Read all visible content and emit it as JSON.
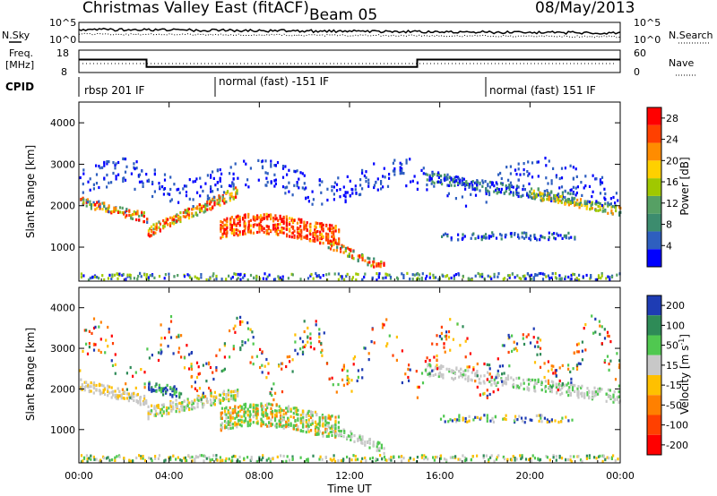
{
  "header": {
    "title": "Christmas Valley East (fitACF)",
    "beam": "Beam 05",
    "date": "08/May/2013"
  },
  "noise_panel": {
    "left_label": "N.Sky",
    "right_label": "N.Search",
    "left_ticks": [
      "10^5",
      "10^0"
    ],
    "right_ticks": [
      "10^5",
      "10^0"
    ]
  },
  "freq_panel": {
    "left_label_line1": "Freq.",
    "left_label_line2": "[MHz]",
    "right_label": "Nave",
    "left_ticks": [
      "18",
      "8"
    ],
    "right_ticks": [
      "60",
      "0"
    ]
  },
  "cpid": {
    "label": "CPID",
    "segments": [
      {
        "text": "rbsp 201 IF",
        "start_hour": 0
      },
      {
        "text": "normal (fast) -151 IF",
        "start_hour": 6
      },
      {
        "text": "normal (fast) 151 IF",
        "start_hour": 18
      }
    ]
  },
  "colors": {
    "power": [
      "#0000ff",
      "#2e5fbf",
      "#3c8c6e",
      "#56a064",
      "#a0c800",
      "#ffd000",
      "#ff8c00",
      "#ff4000",
      "#ff0000"
    ],
    "velocity": [
      "#1e3cb4",
      "#2e8b57",
      "#50c850",
      "#c8c8c8",
      "#ffc000",
      "#ff8000",
      "#ff4000",
      "#ff0000"
    ]
  },
  "chart_data": [
    {
      "type": "heatmap",
      "name": "power",
      "ylabel": "Slant Range [km]",
      "x_range_hours": [
        0,
        24
      ],
      "ylim_km": [
        180,
        4500
      ],
      "yticks": [
        1000,
        2000,
        3000,
        4000
      ],
      "colorbar": {
        "label": "Power [dB]",
        "ticks": [
          4,
          8,
          12,
          16,
          20,
          24,
          28
        ],
        "range": [
          0,
          30
        ]
      }
    },
    {
      "type": "heatmap",
      "name": "velocity",
      "ylabel": "Slant Range [km]",
      "xlabel": "Time UT",
      "x_range_hours": [
        0,
        24
      ],
      "ylim_km": [
        180,
        4500
      ],
      "yticks": [
        1000,
        2000,
        3000,
        4000
      ],
      "xticks": [
        "00:00",
        "04:00",
        "08:00",
        "12:00",
        "16:00",
        "20:00",
        "00:00"
      ],
      "colorbar": {
        "label": "Velocity [m s^-1]",
        "ticks": [
          "200",
          "100",
          "50",
          "15",
          "-15",
          "-50",
          "-100",
          "-200"
        ]
      }
    }
  ]
}
